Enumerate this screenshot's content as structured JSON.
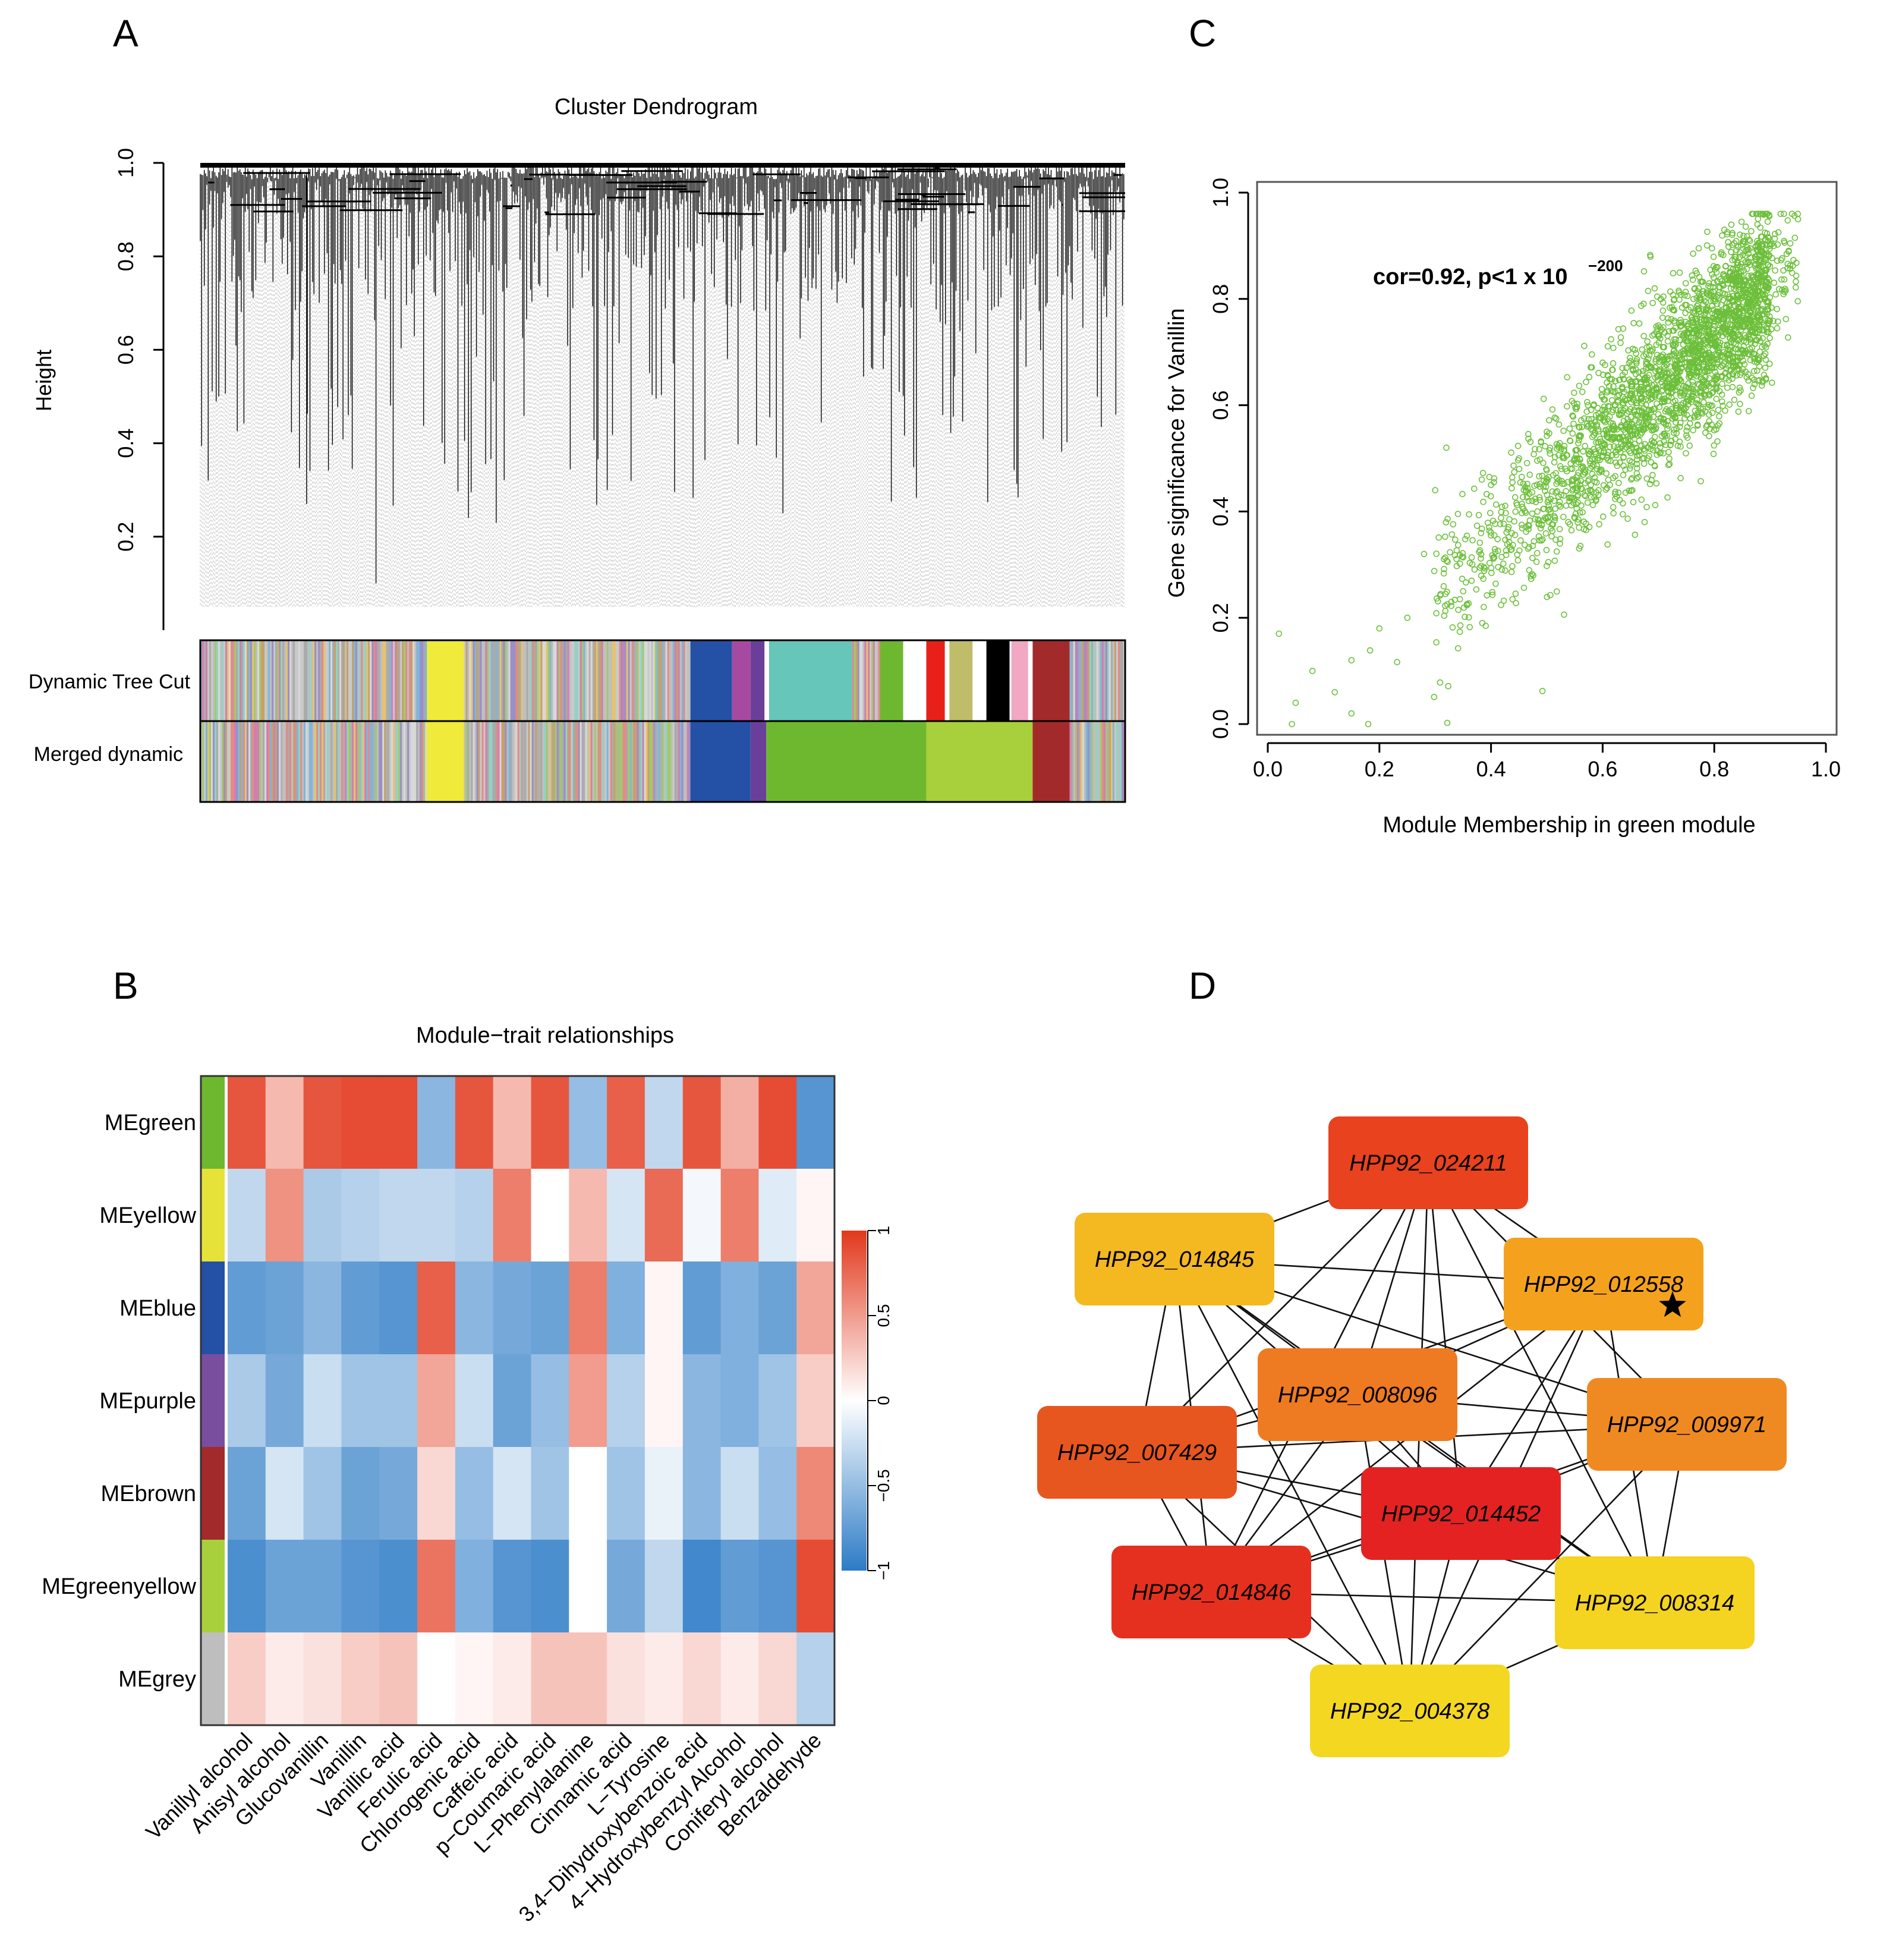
{
  "panels": {
    "a": {
      "letter": "A"
    },
    "b": {
      "letter": "B"
    },
    "c": {
      "letter": "C"
    },
    "d": {
      "letter": "D"
    }
  },
  "chart_data": [
    {
      "id": "dendrogram",
      "type": "dendrogram",
      "title": "Cluster Dendrogram",
      "ylabel": "Height",
      "ylim": [
        0.0,
        1.0
      ],
      "yticks": [
        "0.2",
        "0.4",
        "0.6",
        "0.8",
        "1.0"
      ],
      "ytick_values": [
        0.2,
        0.4,
        0.6,
        0.8,
        1.0
      ],
      "n_leaves": 700,
      "min_merge_height": 0.1,
      "color_rows": [
        {
          "label": "Dynamic Tree Cut",
          "blocks": [
            {
              "from": 0.0,
              "to": 0.245,
              "color": "mixed"
            },
            {
              "from": 0.245,
              "to": 0.285,
              "color": "#f0ea3a"
            },
            {
              "from": 0.285,
              "to": 0.53,
              "color": "mixed"
            },
            {
              "from": 0.53,
              "to": 0.575,
              "color": "#2450a6"
            },
            {
              "from": 0.575,
              "to": 0.595,
              "color": "#a54aa0"
            },
            {
              "from": 0.595,
              "to": 0.61,
              "color": "#6a3f9a"
            },
            {
              "from": 0.615,
              "to": 0.705,
              "color": "#66c6b9"
            },
            {
              "from": 0.705,
              "to": 0.735,
              "color": "mixed"
            },
            {
              "from": 0.735,
              "to": 0.76,
              "color": "#6eb82f"
            },
            {
              "from": 0.785,
              "to": 0.805,
              "color": "#e8201a"
            },
            {
              "from": 0.81,
              "to": 0.835,
              "color": "#c0bd6a"
            },
            {
              "from": 0.85,
              "to": 0.875,
              "color": "#000000"
            },
            {
              "from": 0.877,
              "to": 0.895,
              "color": "#f2a7c2"
            },
            {
              "from": 0.9,
              "to": 0.94,
              "color": "#a32a2a"
            },
            {
              "from": 0.94,
              "to": 1.0,
              "color": "mixed"
            }
          ]
        },
        {
          "label": "Merged dynamic",
          "blocks": [
            {
              "from": 0.0,
              "to": 0.245,
              "color": "mixed"
            },
            {
              "from": 0.245,
              "to": 0.285,
              "color": "#f0ea3a"
            },
            {
              "from": 0.285,
              "to": 0.53,
              "color": "mixed"
            },
            {
              "from": 0.53,
              "to": 0.595,
              "color": "#2450a6"
            },
            {
              "from": 0.595,
              "to": 0.612,
              "color": "#6a3f9a"
            },
            {
              "from": 0.612,
              "to": 0.785,
              "color": "#6eb82f"
            },
            {
              "from": 0.785,
              "to": 0.9,
              "color": "#a8cf3c"
            },
            {
              "from": 0.9,
              "to": 0.94,
              "color": "#a32a2a"
            },
            {
              "from": 0.94,
              "to": 1.0,
              "color": "mixed"
            }
          ]
        }
      ]
    },
    {
      "id": "heatmap",
      "type": "heatmap",
      "title": "Module−trait relationships",
      "rows": [
        "MEgreen",
        "MEyellow",
        "MEblue",
        "MEpurple",
        "MEbrown",
        "MEgreenyellow",
        "MEgrey"
      ],
      "row_colors": [
        "#6eb82f",
        "#e6e23a",
        "#2450a6",
        "#7a4e9e",
        "#a32a2a",
        "#a8cf3c",
        "#bebebe"
      ],
      "columns": [
        "Vanillyl alcohol",
        "Anisyl alcohol",
        "Glucovanillin",
        "Vanillin",
        "Vanillic acid",
        "Ferulic acid",
        "Chlorogenic acid",
        "Caffeic acid",
        "p−Coumaric acid",
        "L−Phenylalanine",
        "Cinnamic acid",
        "L−Tyrosine",
        "3,4−Dihydroxybenzoic acid",
        "4−Hydroxybenzyl Alcohol",
        "Coniferyl alcohol",
        "Benzaldehyde"
      ],
      "values": [
        [
          0.85,
          0.35,
          0.85,
          0.9,
          0.9,
          -0.55,
          0.85,
          0.35,
          0.85,
          -0.5,
          0.8,
          -0.3,
          0.85,
          0.4,
          0.9,
          -0.8
        ],
        [
          -0.3,
          0.55,
          -0.4,
          -0.35,
          -0.3,
          -0.3,
          -0.35,
          0.65,
          0.0,
          0.35,
          -0.2,
          0.75,
          -0.05,
          0.65,
          -0.15,
          0.05
        ],
        [
          -0.75,
          -0.7,
          -0.55,
          -0.75,
          -0.8,
          0.8,
          -0.55,
          -0.65,
          -0.7,
          0.65,
          -0.6,
          0.05,
          -0.75,
          -0.6,
          -0.7,
          0.45
        ],
        [
          -0.4,
          -0.65,
          -0.25,
          -0.45,
          -0.45,
          0.45,
          -0.25,
          -0.7,
          -0.5,
          0.5,
          -0.35,
          0.05,
          -0.55,
          -0.6,
          -0.45,
          0.25
        ],
        [
          -0.7,
          -0.2,
          -0.45,
          -0.7,
          -0.65,
          0.2,
          -0.5,
          -0.2,
          -0.45,
          0.0,
          -0.45,
          -0.1,
          -0.55,
          -0.25,
          -0.5,
          0.6
        ],
        [
          -0.85,
          -0.7,
          -0.7,
          -0.8,
          -0.85,
          0.7,
          -0.6,
          -0.8,
          -0.85,
          0.0,
          -0.65,
          -0.3,
          -0.9,
          -0.75,
          -0.8,
          0.9
        ],
        [
          0.25,
          0.1,
          0.15,
          0.25,
          0.3,
          0.0,
          0.05,
          0.1,
          0.3,
          0.3,
          0.15,
          0.1,
          0.2,
          0.1,
          0.2,
          -0.35
        ]
      ],
      "colorbar": {
        "range": [
          -1,
          1
        ],
        "ticks": [
          "1",
          "0.5",
          "0",
          "−0.5",
          "−1"
        ],
        "tick_values": [
          1,
          0.5,
          0,
          -0.5,
          -1
        ],
        "low_color": "#2c7bc6",
        "mid_color": "#ffffff",
        "high_color": "#e2381c"
      }
    },
    {
      "id": "scatter",
      "type": "scatter",
      "xlabel": "Module Membership in green module",
      "ylabel": "Gene significance for Vanillin",
      "xlim": [
        0.0,
        1.0
      ],
      "ylim": [
        0.0,
        1.0
      ],
      "xticks": [
        "0.0",
        "0.2",
        "0.4",
        "0.6",
        "0.8",
        "1.0"
      ],
      "yticks": [
        "0.0",
        "0.2",
        "0.4",
        "0.6",
        "0.8",
        "1.0"
      ],
      "tick_values": [
        0.0,
        0.2,
        0.4,
        0.6,
        0.8,
        1.0
      ],
      "annotation": {
        "base": "cor=0.92, p<1 x 10",
        "exponent": "−200",
        "at": [
          0.2,
          0.83
        ]
      },
      "point_color": "#6cbf3a",
      "points_sample": [
        [
          0.02,
          0.17
        ],
        [
          0.05,
          0.04
        ],
        [
          0.08,
          0.1
        ],
        [
          0.12,
          0.06
        ],
        [
          0.15,
          0.02
        ],
        [
          0.18,
          0.0
        ],
        [
          0.15,
          0.12
        ],
        [
          0.2,
          0.18
        ],
        [
          0.25,
          0.2
        ],
        [
          0.28,
          0.32
        ],
        [
          0.32,
          0.52
        ],
        [
          0.3,
          0.44
        ],
        [
          0.35,
          0.25
        ],
        [
          0.4,
          0.45
        ],
        [
          0.45,
          0.5
        ],
        [
          0.5,
          0.55
        ],
        [
          0.55,
          0.5
        ],
        [
          0.6,
          0.68
        ],
        [
          0.65,
          0.62
        ],
        [
          0.7,
          0.75
        ],
        [
          0.75,
          0.72
        ],
        [
          0.8,
          0.8
        ],
        [
          0.85,
          0.86
        ],
        [
          0.9,
          0.9
        ],
        [
          0.95,
          0.95
        ]
      ],
      "n_points": 3600
    },
    {
      "id": "network",
      "type": "network",
      "nodes": [
        {
          "id": "HPP92_024211",
          "color": "#e8421e"
        },
        {
          "id": "HPP92_014845",
          "color": "#f4b821"
        },
        {
          "id": "HPP92_012558",
          "color": "#f4a21e",
          "starred": true
        },
        {
          "id": "HPP92_008096",
          "color": "#ee7a22"
        },
        {
          "id": "HPP92_009971",
          "color": "#ef8a22"
        },
        {
          "id": "HPP92_007429",
          "color": "#e8561f"
        },
        {
          "id": "HPP92_014452",
          "color": "#e42222"
        },
        {
          "id": "HPP92_014846",
          "color": "#e6301f"
        },
        {
          "id": "HPP92_008314",
          "color": "#f4d321"
        },
        {
          "id": "HPP92_004378",
          "color": "#f4d721"
        }
      ],
      "edges": [
        [
          "HPP92_024211",
          "HPP92_014845"
        ],
        [
          "HPP92_024211",
          "HPP92_012558"
        ],
        [
          "HPP92_024211",
          "HPP92_008096"
        ],
        [
          "HPP92_024211",
          "HPP92_009971"
        ],
        [
          "HPP92_024211",
          "HPP92_007429"
        ],
        [
          "HPP92_024211",
          "HPP92_014452"
        ],
        [
          "HPP92_024211",
          "HPP92_014846"
        ],
        [
          "HPP92_024211",
          "HPP92_008314"
        ],
        [
          "HPP92_024211",
          "HPP92_004378"
        ],
        [
          "HPP92_014845",
          "HPP92_012558"
        ],
        [
          "HPP92_014845",
          "HPP92_008096"
        ],
        [
          "HPP92_014845",
          "HPP92_009971"
        ],
        [
          "HPP92_014845",
          "HPP92_007429"
        ],
        [
          "HPP92_014845",
          "HPP92_014452"
        ],
        [
          "HPP92_014845",
          "HPP92_014846"
        ],
        [
          "HPP92_014845",
          "HPP92_008314"
        ],
        [
          "HPP92_014845",
          "HPP92_004378"
        ],
        [
          "HPP92_012558",
          "HPP92_008096"
        ],
        [
          "HPP92_012558",
          "HPP92_007429"
        ],
        [
          "HPP92_012558",
          "HPP92_014452"
        ],
        [
          "HPP92_012558",
          "HPP92_014846"
        ],
        [
          "HPP92_012558",
          "HPP92_008314"
        ],
        [
          "HPP92_012558",
          "HPP92_004378"
        ],
        [
          "HPP92_008096",
          "HPP92_009971"
        ],
        [
          "HPP92_008096",
          "HPP92_007429"
        ],
        [
          "HPP92_008096",
          "HPP92_014452"
        ],
        [
          "HPP92_008096",
          "HPP92_014846"
        ],
        [
          "HPP92_008096",
          "HPP92_008314"
        ],
        [
          "HPP92_008096",
          "HPP92_004378"
        ],
        [
          "HPP92_009971",
          "HPP92_007429"
        ],
        [
          "HPP92_009971",
          "HPP92_014452"
        ],
        [
          "HPP92_009971",
          "HPP92_014846"
        ],
        [
          "HPP92_009971",
          "HPP92_008314"
        ],
        [
          "HPP92_009971",
          "HPP92_004378"
        ],
        [
          "HPP92_007429",
          "HPP92_014452"
        ],
        [
          "HPP92_007429",
          "HPP92_014846"
        ],
        [
          "HPP92_007429",
          "HPP92_008314"
        ],
        [
          "HPP92_007429",
          "HPP92_004378"
        ],
        [
          "HPP92_014452",
          "HPP92_014846"
        ],
        [
          "HPP92_014452",
          "HPP92_008314"
        ],
        [
          "HPP92_014452",
          "HPP92_004378"
        ],
        [
          "HPP92_014846",
          "HPP92_008314"
        ],
        [
          "HPP92_014846",
          "HPP92_004378"
        ],
        [
          "HPP92_008314",
          "HPP92_004378"
        ]
      ]
    }
  ]
}
